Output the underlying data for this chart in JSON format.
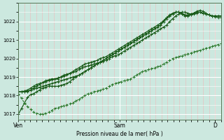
{
  "bg_color": "#cce8df",
  "plot_bg_color": "#cce8df",
  "grid_major_color": "#ffffff",
  "grid_minor_color": "#e8c0c0",
  "line_color": "#1a5c1a",
  "line_color_dashed": "#2d7a2d",
  "ylabel": "Pression niveau de la mer( hPa )",
  "ylim": [
    1016.7,
    1023.0
  ],
  "yticks": [
    1017,
    1018,
    1019,
    1020,
    1021,
    1022
  ],
  "xtick_labels": [
    "Ven",
    "Sam",
    "D"
  ],
  "xtick_positions": [
    0.0,
    0.5,
    0.97
  ],
  "series_solid": [
    [
      1018.2,
      1018.2,
      1018.2,
      1018.2,
      1018.3,
      1018.4,
      1018.5,
      1018.6,
      1018.7,
      1018.8,
      1018.85,
      1018.9,
      1018.9,
      1018.9,
      1019.0,
      1019.1,
      1019.15,
      1019.2,
      1019.25,
      1019.3,
      1019.4,
      1019.5,
      1019.55,
      1019.6,
      1019.65,
      1019.7,
      1019.75,
      1019.8,
      1019.85,
      1019.9,
      1020.0,
      1020.1,
      1020.15,
      1020.2,
      1020.3,
      1020.4,
      1020.5,
      1020.6,
      1020.7,
      1020.8,
      1020.9,
      1021.0,
      1021.1,
      1021.2,
      1021.3,
      1021.4,
      1021.5,
      1021.6,
      1021.7,
      1021.8,
      1022.0,
      1022.15,
      1022.3,
      1022.4,
      1022.5,
      1022.5,
      1022.45,
      1022.4,
      1022.45,
      1022.5,
      1022.5,
      1022.45,
      1022.4,
      1022.35,
      1022.3,
      1022.3,
      1022.3,
      1022.3
    ],
    [
      1018.2,
      1018.2,
      1018.2,
      1018.25,
      1018.3,
      1018.35,
      1018.4,
      1018.45,
      1018.5,
      1018.55,
      1018.6,
      1018.65,
      1018.7,
      1018.75,
      1018.8,
      1018.85,
      1018.9,
      1018.95,
      1019.0,
      1019.05,
      1019.1,
      1019.2,
      1019.3,
      1019.4,
      1019.5,
      1019.6,
      1019.7,
      1019.8,
      1019.9,
      1020.0,
      1020.1,
      1020.2,
      1020.3,
      1020.4,
      1020.5,
      1020.6,
      1020.7,
      1020.8,
      1020.9,
      1021.0,
      1021.1,
      1021.2,
      1021.3,
      1021.4,
      1021.5,
      1021.6,
      1021.7,
      1021.8,
      1022.0,
      1022.15,
      1022.3,
      1022.4,
      1022.5,
      1022.5,
      1022.4,
      1022.35,
      1022.35,
      1022.4,
      1022.45,
      1022.5,
      1022.5,
      1022.45,
      1022.4,
      1022.35,
      1022.3,
      1022.3,
      1022.3,
      1022.3
    ],
    [
      1018.2,
      1018.2,
      1018.25,
      1018.3,
      1018.4,
      1018.5,
      1018.6,
      1018.65,
      1018.7,
      1018.75,
      1018.8,
      1018.85,
      1018.9,
      1018.95,
      1019.0,
      1019.05,
      1019.1,
      1019.2,
      1019.3,
      1019.4,
      1019.5,
      1019.6,
      1019.7,
      1019.75,
      1019.8,
      1019.85,
      1019.9,
      1020.0,
      1020.05,
      1020.1,
      1020.2,
      1020.3,
      1020.4,
      1020.5,
      1020.6,
      1020.7,
      1020.8,
      1020.9,
      1021.0,
      1021.1,
      1021.2,
      1021.3,
      1021.4,
      1021.5,
      1021.6,
      1021.7,
      1021.8,
      1021.9,
      1022.05,
      1022.2,
      1022.3,
      1022.4,
      1022.5,
      1022.5,
      1022.45,
      1022.35,
      1022.3,
      1022.35,
      1022.4,
      1022.45,
      1022.5,
      1022.45,
      1022.4,
      1022.35,
      1022.3,
      1022.25,
      1022.2,
      1022.2
    ],
    [
      1017.0,
      1017.3,
      1017.6,
      1017.9,
      1018.05,
      1018.1,
      1018.2,
      1018.3,
      1018.4,
      1018.45,
      1018.5,
      1018.5,
      1018.5,
      1018.5,
      1018.55,
      1018.6,
      1018.65,
      1018.75,
      1018.9,
      1019.0,
      1019.1,
      1019.2,
      1019.3,
      1019.4,
      1019.5,
      1019.6,
      1019.7,
      1019.8,
      1019.9,
      1020.0,
      1020.1,
      1020.2,
      1020.3,
      1020.4,
      1020.5,
      1020.6,
      1020.7,
      1020.8,
      1020.9,
      1021.0,
      1021.1,
      1021.2,
      1021.3,
      1021.4,
      1021.5,
      1021.6,
      1021.7,
      1021.8,
      1022.0,
      1022.2,
      1022.35,
      1022.45,
      1022.5,
      1022.5,
      1022.4,
      1022.3,
      1022.3,
      1022.35,
      1022.45,
      1022.55,
      1022.6,
      1022.55,
      1022.45,
      1022.35,
      1022.3,
      1022.3,
      1022.3,
      1022.3
    ]
  ],
  "series_dashed": [
    [
      1018.1,
      1017.85,
      1017.6,
      1017.4,
      1017.25,
      1017.1,
      1017.05,
      1017.0,
      1017.0,
      1017.05,
      1017.1,
      1017.2,
      1017.3,
      1017.35,
      1017.4,
      1017.45,
      1017.5,
      1017.55,
      1017.6,
      1017.7,
      1017.8,
      1017.9,
      1018.0,
      1018.1,
      1018.15,
      1018.2,
      1018.25,
      1018.3,
      1018.35,
      1018.4,
      1018.5,
      1018.6,
      1018.65,
      1018.7,
      1018.75,
      1018.8,
      1018.85,
      1018.9,
      1019.0,
      1019.1,
      1019.2,
      1019.3,
      1019.35,
      1019.4,
      1019.45,
      1019.5,
      1019.55,
      1019.6,
      1019.7,
      1019.8,
      1019.9,
      1020.0,
      1020.05,
      1020.1,
      1020.15,
      1020.2,
      1020.25,
      1020.3,
      1020.35,
      1020.4,
      1020.45,
      1020.5,
      1020.55,
      1020.6,
      1020.65,
      1020.7,
      1020.75,
      1020.8
    ]
  ]
}
